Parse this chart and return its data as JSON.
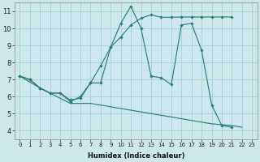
{
  "background_color": "#cde8ec",
  "grid_color": "#aed4d8",
  "line_color": "#2d7d78",
  "xlim": [
    -0.5,
    23.5
  ],
  "ylim": [
    3.5,
    11.5
  ],
  "xticks": [
    0,
    1,
    2,
    3,
    4,
    5,
    6,
    7,
    8,
    9,
    10,
    11,
    12,
    13,
    14,
    15,
    16,
    17,
    18,
    19,
    20,
    21,
    22,
    23
  ],
  "yticks": [
    4,
    5,
    6,
    7,
    8,
    9,
    10,
    11
  ],
  "xlabel": "Humidex (Indice chaleur)",
  "series": [
    {
      "x": [
        0,
        1,
        2,
        3,
        4,
        5,
        6,
        7,
        8,
        9,
        10,
        11,
        12,
        13,
        14,
        15,
        16,
        17,
        18,
        19,
        20,
        21,
        22
      ],
      "y": [
        7.2,
        7.0,
        6.5,
        6.2,
        6.2,
        5.7,
        6.0,
        6.8,
        6.8,
        8.9,
        10.3,
        11.3,
        10.0,
        7.2,
        7.1,
        6.7,
        10.2,
        10.3,
        8.7,
        5.5,
        4.3,
        4.2,
        null
      ]
    },
    {
      "x": [
        0,
        1,
        2,
        3,
        4,
        5,
        6,
        7,
        8,
        9,
        10,
        11,
        12,
        13,
        14,
        15,
        16,
        17,
        18,
        19,
        20,
        21
      ],
      "y": [
        7.2,
        7.0,
        6.5,
        6.2,
        6.2,
        5.8,
        5.9,
        6.8,
        7.8,
        8.9,
        9.5,
        10.2,
        10.6,
        10.8,
        10.65,
        10.65,
        10.67,
        10.67,
        10.67,
        10.67,
        10.67,
        10.67
      ]
    },
    {
      "x": [
        0,
        2,
        3,
        4,
        5,
        6,
        7,
        8,
        9,
        10,
        11,
        12,
        13,
        14,
        15,
        16,
        17,
        18,
        19,
        20,
        21,
        22
      ],
      "y": [
        7.2,
        6.5,
        6.2,
        5.9,
        5.6,
        5.6,
        5.6,
        5.5,
        5.4,
        5.3,
        5.2,
        5.1,
        5.0,
        4.9,
        4.8,
        4.7,
        4.6,
        4.5,
        4.4,
        4.35,
        4.3,
        4.2
      ]
    }
  ]
}
